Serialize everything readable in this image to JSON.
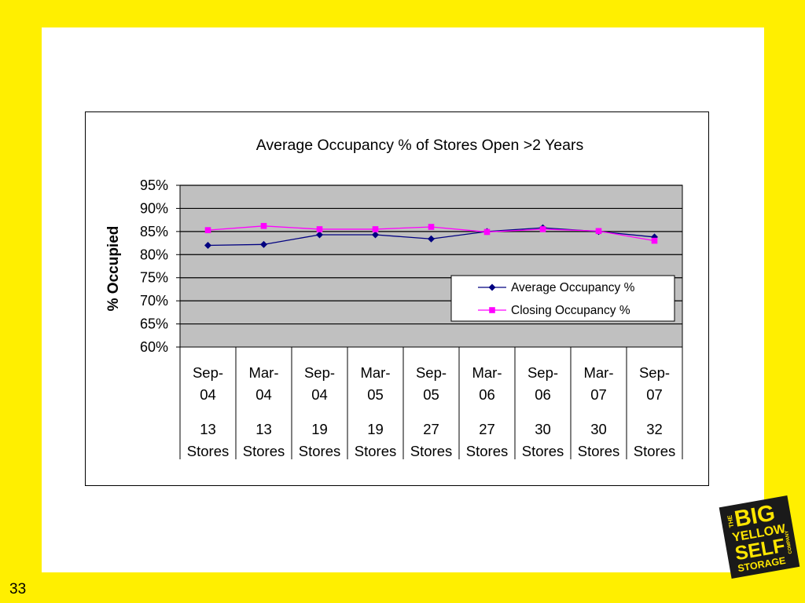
{
  "slide": {
    "page_number": "33"
  },
  "logo": {
    "line1_small": "THE",
    "line1": "BIG",
    "line2": "YELLOW",
    "line3": "SELF",
    "line3_small": "COMPANY",
    "line4": "STORAGE",
    "bg_color": "#1a1a1a",
    "text_color": "#FFE600"
  },
  "chart_data": {
    "type": "line",
    "title": "Average Occupancy % of Stores Open >2 Years",
    "ylabel": "% Occupied",
    "xlabel": "",
    "ylim": [
      60,
      95
    ],
    "yticks": [
      "60%",
      "65%",
      "70%",
      "75%",
      "80%",
      "85%",
      "90%",
      "95%"
    ],
    "grid": true,
    "plot_background": "#C0C0C0",
    "legend_position": "right, inside plot",
    "categories": [
      {
        "date": [
          "Sep-",
          "04"
        ],
        "stores": [
          "13",
          "Stores"
        ]
      },
      {
        "date": [
          "Mar-",
          "04"
        ],
        "stores": [
          "13",
          "Stores"
        ]
      },
      {
        "date": [
          "Sep-",
          "04"
        ],
        "stores": [
          "19",
          "Stores"
        ]
      },
      {
        "date": [
          "Mar-",
          "05"
        ],
        "stores": [
          "19",
          "Stores"
        ]
      },
      {
        "date": [
          "Sep-",
          "05"
        ],
        "stores": [
          "27",
          "Stores"
        ]
      },
      {
        "date": [
          "Mar-",
          "06"
        ],
        "stores": [
          "27",
          "Stores"
        ]
      },
      {
        "date": [
          "Sep-",
          "06"
        ],
        "stores": [
          "30",
          "Stores"
        ]
      },
      {
        "date": [
          "Mar-",
          "07"
        ],
        "stores": [
          "30",
          "Stores"
        ]
      },
      {
        "date": [
          "Sep-",
          "07"
        ],
        "stores": [
          "32",
          "Stores"
        ]
      }
    ],
    "series": [
      {
        "name": "Average Occupancy %",
        "color": "#000080",
        "marker": "diamond",
        "values": [
          82.0,
          82.2,
          84.3,
          84.3,
          83.4,
          85.0,
          85.8,
          85.0,
          83.8
        ]
      },
      {
        "name": "Closing Occupancy %",
        "color": "#FF00FF",
        "marker": "square",
        "values": [
          85.3,
          86.2,
          85.5,
          85.5,
          86.0,
          84.9,
          85.5,
          85.1,
          83.0
        ]
      }
    ]
  }
}
